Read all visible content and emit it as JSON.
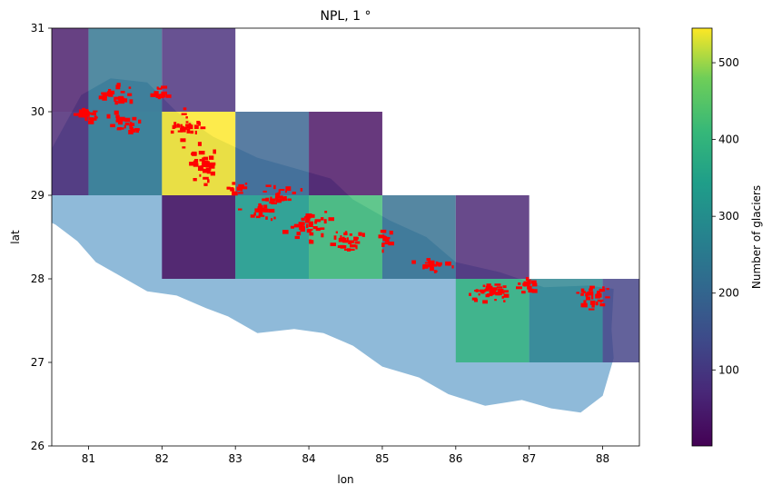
{
  "chart_data": {
    "type": "heatmap",
    "title": "NPL, 1 °",
    "xlabel": "lon",
    "ylabel": "lat",
    "xlim": [
      80.5,
      88.5
    ],
    "ylim": [
      26,
      31
    ],
    "xticks": [
      "81",
      "82",
      "83",
      "84",
      "85",
      "86",
      "87",
      "88"
    ],
    "yticks": [
      "26",
      "27",
      "28",
      "29",
      "30",
      "31"
    ],
    "colorbar": {
      "label": "Number of glaciers",
      "range": [
        1,
        545
      ],
      "ticks": [
        "100",
        "200",
        "300",
        "400",
        "500"
      ],
      "colormap": "viridis"
    },
    "cells": [
      {
        "lon": 80,
        "lat": 30,
        "count": 40
      },
      {
        "lon": 81,
        "lat": 30,
        "count": 230
      },
      {
        "lon": 82,
        "lat": 30,
        "count": 80
      },
      {
        "lon": 80,
        "lat": 29,
        "count": 60
      },
      {
        "lon": 81,
        "lat": 29,
        "count": 240
      },
      {
        "lon": 82,
        "lat": 29,
        "count": 545
      },
      {
        "lon": 83,
        "lat": 29,
        "count": 190
      },
      {
        "lon": 84,
        "lat": 29,
        "count": 25
      },
      {
        "lon": 82,
        "lat": 28,
        "count": 15
      },
      {
        "lon": 83,
        "lat": 28,
        "count": 340
      },
      {
        "lon": 84,
        "lat": 28,
        "count": 420
      },
      {
        "lon": 85,
        "lat": 28,
        "count": 220
      },
      {
        "lon": 86,
        "lat": 28,
        "count": 60
      },
      {
        "lon": 86,
        "lat": 27,
        "count": 395
      },
      {
        "lon": 87,
        "lat": 27,
        "count": 270
      },
      {
        "lon": 88,
        "lat": 27,
        "count": 120
      }
    ],
    "country_outline": [
      [
        80.05,
        28.85
      ],
      [
        80.4,
        29.4
      ],
      [
        80.9,
        30.2
      ],
      [
        81.3,
        30.4
      ],
      [
        81.8,
        30.35
      ],
      [
        82.2,
        30.0
      ],
      [
        82.7,
        29.7
      ],
      [
        83.3,
        29.45
      ],
      [
        83.9,
        29.3
      ],
      [
        84.3,
        29.2
      ],
      [
        84.6,
        28.95
      ],
      [
        85.1,
        28.7
      ],
      [
        85.6,
        28.5
      ],
      [
        86.0,
        28.2
      ],
      [
        86.6,
        28.08
      ],
      [
        87.2,
        27.9
      ],
      [
        87.8,
        27.92
      ],
      [
        88.15,
        27.88
      ],
      [
        88.12,
        27.4
      ],
      [
        88.15,
        27.05
      ],
      [
        88.0,
        26.6
      ],
      [
        87.7,
        26.4
      ],
      [
        87.3,
        26.45
      ],
      [
        86.9,
        26.55
      ],
      [
        86.4,
        26.48
      ],
      [
        85.9,
        26.62
      ],
      [
        85.5,
        26.82
      ],
      [
        85.0,
        26.95
      ],
      [
        84.6,
        27.2
      ],
      [
        84.2,
        27.35
      ],
      [
        83.8,
        27.4
      ],
      [
        83.3,
        27.35
      ],
      [
        82.9,
        27.55
      ],
      [
        82.6,
        27.65
      ],
      [
        82.2,
        27.8
      ],
      [
        81.8,
        27.85
      ],
      [
        81.4,
        28.05
      ],
      [
        81.1,
        28.2
      ],
      [
        80.85,
        28.45
      ],
      [
        80.55,
        28.65
      ],
      [
        80.3,
        28.75
      ],
      [
        80.05,
        28.85
      ]
    ],
    "glacier_clusters": [
      {
        "lon": 81.0,
        "lat": 29.95,
        "spread": [
          0.15,
          0.08
        ],
        "count": 22
      },
      {
        "lon": 81.4,
        "lat": 30.2,
        "spread": [
          0.2,
          0.1
        ],
        "count": 24
      },
      {
        "lon": 81.5,
        "lat": 29.85,
        "spread": [
          0.2,
          0.12
        ],
        "count": 26
      },
      {
        "lon": 81.95,
        "lat": 30.2,
        "spread": [
          0.12,
          0.1
        ],
        "count": 16
      },
      {
        "lon": 82.35,
        "lat": 29.8,
        "spread": [
          0.2,
          0.15
        ],
        "count": 28
      },
      {
        "lon": 82.55,
        "lat": 29.35,
        "spread": [
          0.2,
          0.18
        ],
        "count": 40
      },
      {
        "lon": 83.05,
        "lat": 29.1,
        "spread": [
          0.12,
          0.08
        ],
        "count": 12
      },
      {
        "lon": 83.35,
        "lat": 28.8,
        "spread": [
          0.15,
          0.1
        ],
        "count": 20
      },
      {
        "lon": 83.6,
        "lat": 29.0,
        "spread": [
          0.2,
          0.1
        ],
        "count": 28
      },
      {
        "lon": 84.0,
        "lat": 28.65,
        "spread": [
          0.2,
          0.15
        ],
        "count": 36
      },
      {
        "lon": 84.55,
        "lat": 28.45,
        "spread": [
          0.2,
          0.12
        ],
        "count": 28
      },
      {
        "lon": 85.05,
        "lat": 28.45,
        "spread": [
          0.08,
          0.12
        ],
        "count": 14
      },
      {
        "lon": 85.65,
        "lat": 28.17,
        "spread": [
          0.25,
          0.06
        ],
        "count": 22
      },
      {
        "lon": 86.5,
        "lat": 27.85,
        "spread": [
          0.28,
          0.12
        ],
        "count": 40
      },
      {
        "lon": 87.0,
        "lat": 27.9,
        "spread": [
          0.12,
          0.1
        ],
        "count": 18
      },
      {
        "lon": 87.85,
        "lat": 27.8,
        "spread": [
          0.25,
          0.12
        ],
        "count": 32
      }
    ]
  }
}
